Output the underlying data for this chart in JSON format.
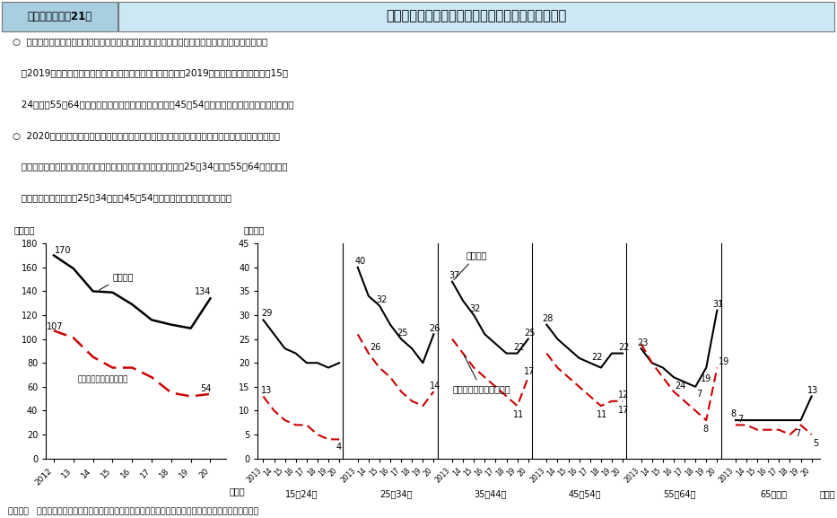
{
  "title_box": "第１－（２）－21図",
  "title": "年齢階級別・失業期間別にみた完全失業者数の推移",
  "subtitle_lines": [
    "○  失業期間別の完全失業者数の推移をみると、年齢計では長期失業者数、１年未満失業者数はとも",
    "   に2019年まで減少傾向が続いていた。年齢階級別にみると、2019年には、長期失業者が「15～",
    "   24歳」「55～64歳」の年齢層で、１年未満失業者が「45～54歳」の年齢層でそれぞれ増加した。",
    "○  2020年には、年齢計で長期失業者、１年未満失業者がともに増加したが、１年未満失業者の方が",
    "   大きく増加している。年齢階級別では、１年未満失業者は特に「25～34歳」「55～64歳」の年齢",
    "   層で、長期失業者は「25～34歳」「45～54歳」の年齢層で増加している。"
  ],
  "source": "資料出所   総務省統計局「労働力調査（詳細集計）」をもとに厚生労働省政策統括官付政策統括室にて作成",
  "left_years": [
    2012,
    2013,
    2014,
    2015,
    2016,
    2017,
    2018,
    2019,
    2020
  ],
  "left_under1": [
    170,
    159,
    140,
    139,
    129,
    116,
    112,
    109,
    134
  ],
  "left_long": [
    107,
    101,
    85,
    76,
    76,
    68,
    55,
    52,
    54
  ],
  "age_groups": [
    "15～24歳",
    "25～34歳",
    "35～44歳",
    "45～54歳",
    "55～64歳",
    "65歳以上"
  ],
  "age15_24_under1": [
    29,
    26,
    23,
    22,
    20,
    20,
    19,
    20
  ],
  "age15_24_long": [
    13,
    10,
    8,
    7,
    7,
    5,
    4,
    4
  ],
  "age25_34_under1": [
    40,
    34,
    32,
    28,
    25,
    23,
    20,
    26
  ],
  "age25_34_long": [
    26,
    22,
    19,
    17,
    14,
    12,
    11,
    14
  ],
  "age35_44_under1": [
    37,
    33,
    30,
    26,
    24,
    22,
    22,
    25
  ],
  "age35_44_long": [
    25,
    22,
    19,
    17,
    15,
    13,
    11,
    17
  ],
  "age45_54_under1": [
    28,
    25,
    23,
    21,
    20,
    19,
    22,
    22
  ],
  "age45_54_long": [
    22,
    19,
    17,
    15,
    13,
    11,
    12,
    12
  ],
  "age55_64_under1": [
    23,
    20,
    19,
    17,
    16,
    15,
    19,
    31
  ],
  "age55_64_long": [
    24,
    20,
    17,
    14,
    12,
    10,
    8,
    19
  ],
  "age65plus_under1": [
    8,
    8,
    8,
    8,
    8,
    8,
    8,
    13
  ],
  "age65plus_long": [
    7,
    7,
    6,
    6,
    6,
    5,
    7,
    5
  ],
  "left_ylim": [
    0,
    180
  ],
  "left_yticks": [
    0,
    20,
    40,
    60,
    80,
    100,
    120,
    140,
    160,
    180
  ],
  "right_ylim": [
    0,
    45
  ],
  "right_yticks": [
    0,
    5,
    10,
    15,
    20,
    25,
    30,
    35,
    40,
    45
  ],
  "color_under1": "#000000",
  "color_long": "#cc0000",
  "header_bg": "#cde8f5",
  "header_box_bg": "#a8cfe0"
}
